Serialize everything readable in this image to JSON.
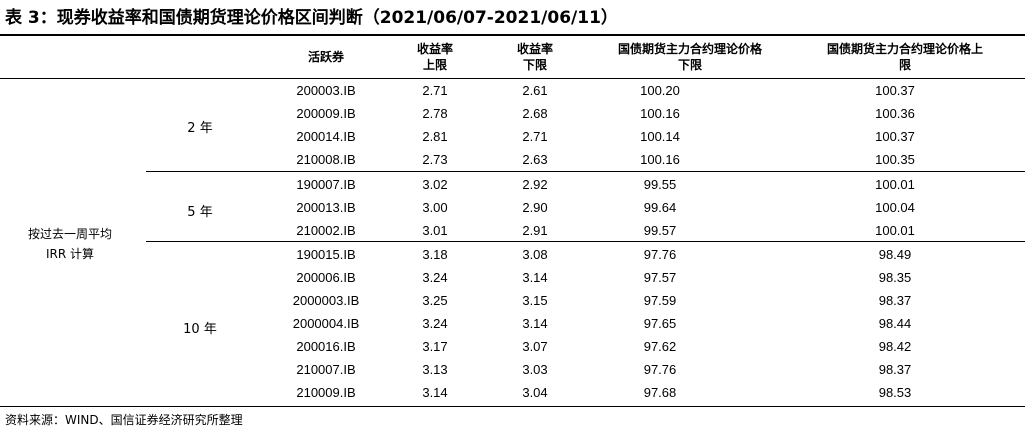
{
  "title": "表 3：现券收益率和国债期货理论价格区间判断（2021/06/07-2021/06/11）",
  "headers": {
    "bond": "活跃券",
    "yield_upper": [
      "收益率",
      "上限"
    ],
    "yield_lower": [
      "收益率",
      "下限"
    ],
    "price_lower": [
      "国债期货主力合约理论价格",
      "下限"
    ],
    "price_upper": [
      "国债期货主力合约理论价格上",
      "限"
    ]
  },
  "method": [
    "按过去一周平均",
    "IRR 计算"
  ],
  "groups": [
    {
      "label": "2 年",
      "rows": [
        {
          "bond": "200003.IB",
          "yield_upper": "2.71",
          "yield_lower": "2.61",
          "price_lower": "100.20",
          "price_upper": "100.37"
        },
        {
          "bond": "200009.IB",
          "yield_upper": "2.78",
          "yield_lower": "2.68",
          "price_lower": "100.16",
          "price_upper": "100.36"
        },
        {
          "bond": "200014.IB",
          "yield_upper": "2.81",
          "yield_lower": "2.71",
          "price_lower": "100.14",
          "price_upper": "100.37"
        },
        {
          "bond": "210008.IB",
          "yield_upper": "2.73",
          "yield_lower": "2.63",
          "price_lower": "100.16",
          "price_upper": "100.35"
        }
      ]
    },
    {
      "label": "5 年",
      "rows": [
        {
          "bond": "190007.IB",
          "yield_upper": "3.02",
          "yield_lower": "2.92",
          "price_lower": "99.55",
          "price_upper": "100.01"
        },
        {
          "bond": "200013.IB",
          "yield_upper": "3.00",
          "yield_lower": "2.90",
          "price_lower": "99.64",
          "price_upper": "100.04"
        },
        {
          "bond": "210002.IB",
          "yield_upper": "3.01",
          "yield_lower": "2.91",
          "price_lower": "99.57",
          "price_upper": "100.01"
        }
      ]
    },
    {
      "label": "10 年",
      "rows": [
        {
          "bond": "190015.IB",
          "yield_upper": "3.18",
          "yield_lower": "3.08",
          "price_lower": "97.76",
          "price_upper": "98.49"
        },
        {
          "bond": "200006.IB",
          "yield_upper": "3.24",
          "yield_lower": "3.14",
          "price_lower": "97.57",
          "price_upper": "98.35"
        },
        {
          "bond": "2000003.IB",
          "yield_upper": "3.25",
          "yield_lower": "3.15",
          "price_lower": "97.59",
          "price_upper": "98.37"
        },
        {
          "bond": "2000004.IB",
          "yield_upper": "3.24",
          "yield_lower": "3.14",
          "price_lower": "97.65",
          "price_upper": "98.44"
        },
        {
          "bond": "200016.IB",
          "yield_upper": "3.17",
          "yield_lower": "3.07",
          "price_lower": "97.62",
          "price_upper": "98.42"
        },
        {
          "bond": "210007.IB",
          "yield_upper": "3.13",
          "yield_lower": "3.03",
          "price_lower": "97.76",
          "price_upper": "98.37"
        },
        {
          "bond": "210009.IB",
          "yield_upper": "3.14",
          "yield_lower": "3.04",
          "price_lower": "97.68",
          "price_upper": "98.53"
        }
      ]
    }
  ],
  "source": "资料来源：WIND、国信证券经济研究所整理"
}
